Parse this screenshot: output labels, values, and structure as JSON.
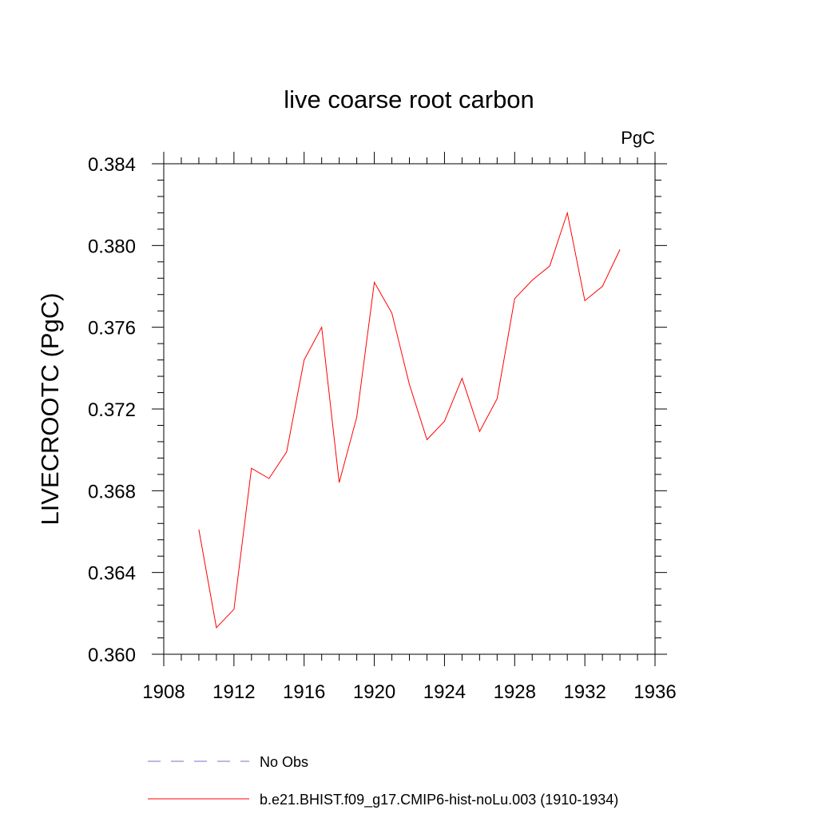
{
  "chart_data": {
    "type": "line",
    "title": "live coarse root carbon",
    "units_label": "PgC",
    "ylabel": "LIVECROOTC  (PgC)",
    "xlabel": "",
    "xlim": [
      1908,
      1936
    ],
    "ylim": [
      0.36,
      0.384
    ],
    "x_ticks": [
      1908,
      1912,
      1916,
      1920,
      1924,
      1928,
      1932,
      1936
    ],
    "x_tick_labels": [
      "1908",
      "1912",
      "1916",
      "1920",
      "1924",
      "1928",
      "1932",
      "1936"
    ],
    "y_ticks": [
      0.36,
      0.364,
      0.368,
      0.372,
      0.376,
      0.38,
      0.384
    ],
    "y_tick_labels": [
      "0.360",
      "0.364",
      "0.368",
      "0.372",
      "0.376",
      "0.380",
      "0.384"
    ],
    "grid": false,
    "legend_position": "bottom",
    "series": [
      {
        "name": "b.e21.BHIST.f09_g17.CMIP6-hist-noLu.003 (1910-1934)",
        "color": "#ff0000",
        "line_style": "solid",
        "x": [
          1910,
          1911,
          1912,
          1913,
          1914,
          1915,
          1916,
          1917,
          1918,
          1919,
          1920,
          1921,
          1922,
          1923,
          1924,
          1925,
          1926,
          1927,
          1928,
          1929,
          1930,
          1931,
          1932,
          1933,
          1934
        ],
        "y": [
          0.3661,
          0.3613,
          0.3622,
          0.3691,
          0.3686,
          0.3699,
          0.3744,
          0.376,
          0.3684,
          0.3716,
          0.3782,
          0.3767,
          0.3732,
          0.3705,
          0.3714,
          0.3735,
          0.3709,
          0.3725,
          0.3774,
          0.3783,
          0.379,
          0.3816,
          0.3773,
          0.378,
          0.3798
        ]
      }
    ],
    "legend": [
      {
        "label": "No Obs",
        "color": "#7a6fd6",
        "line_style": "dashed"
      },
      {
        "label": "b.e21.BHIST.f09_g17.CMIP6-hist-noLu.003 (1910-1934)",
        "color": "#ff0000",
        "line_style": "solid"
      }
    ]
  }
}
